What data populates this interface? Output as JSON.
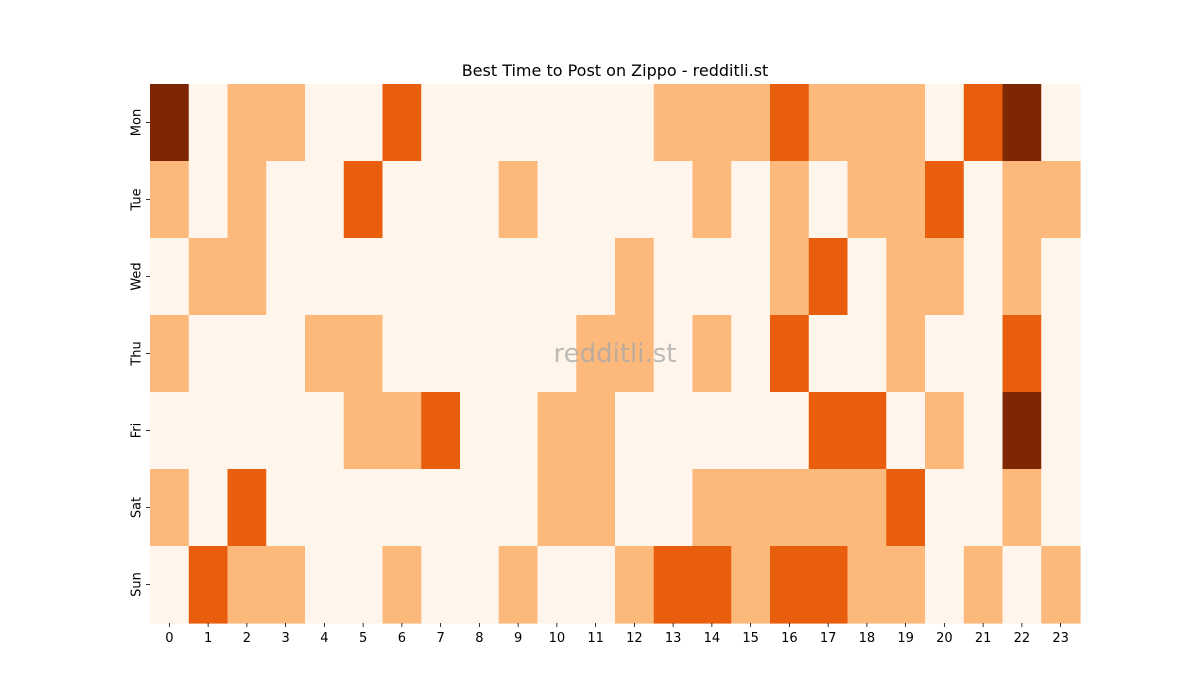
{
  "chart_data": {
    "type": "heatmap",
    "title": "Best Time to Post on Zippo - redditli.st",
    "watermark": "redditli.st",
    "x": [
      "0",
      "1",
      "2",
      "3",
      "4",
      "5",
      "6",
      "7",
      "8",
      "9",
      "10",
      "11",
      "12",
      "13",
      "14",
      "15",
      "16",
      "17",
      "18",
      "19",
      "20",
      "21",
      "22",
      "23"
    ],
    "y": [
      "Mon",
      "Tue",
      "Wed",
      "Thu",
      "Fri",
      "Sat",
      "Sun"
    ],
    "xlabel": "",
    "ylabel": "",
    "values": [
      [
        3,
        0,
        1,
        1,
        0,
        0,
        2,
        0,
        0,
        0,
        0,
        0,
        0,
        1,
        1,
        1,
        2,
        1,
        1,
        1,
        0,
        2,
        3,
        0
      ],
      [
        1,
        0,
        1,
        0,
        0,
        2,
        0,
        0,
        0,
        1,
        0,
        0,
        0,
        0,
        1,
        0,
        1,
        0,
        1,
        1,
        2,
        0,
        1,
        1
      ],
      [
        0,
        1,
        1,
        0,
        0,
        0,
        0,
        0,
        0,
        0,
        0,
        0,
        1,
        0,
        0,
        0,
        1,
        2,
        0,
        1,
        1,
        0,
        1,
        0
      ],
      [
        1,
        0,
        0,
        0,
        1,
        1,
        0,
        0,
        0,
        0,
        0,
        1,
        1,
        0,
        1,
        0,
        2,
        0,
        0,
        1,
        0,
        0,
        2,
        0
      ],
      [
        0,
        0,
        0,
        0,
        0,
        1,
        1,
        2,
        0,
        0,
        1,
        1,
        0,
        0,
        0,
        0,
        0,
        2,
        2,
        0,
        1,
        0,
        3,
        0
      ],
      [
        1,
        0,
        2,
        0,
        0,
        0,
        0,
        0,
        0,
        0,
        1,
        1,
        0,
        0,
        1,
        1,
        1,
        1,
        1,
        2,
        0,
        0,
        1,
        0
      ],
      [
        0,
        2,
        1,
        1,
        0,
        0,
        1,
        0,
        0,
        1,
        0,
        0,
        1,
        2,
        2,
        1,
        2,
        2,
        1,
        1,
        0,
        1,
        0,
        1
      ]
    ],
    "colorscale": [
      "#fff5eb",
      "#fdb87c",
      "#e95e0d",
      "#7f2704"
    ],
    "colorbar": false,
    "grid": false
  }
}
